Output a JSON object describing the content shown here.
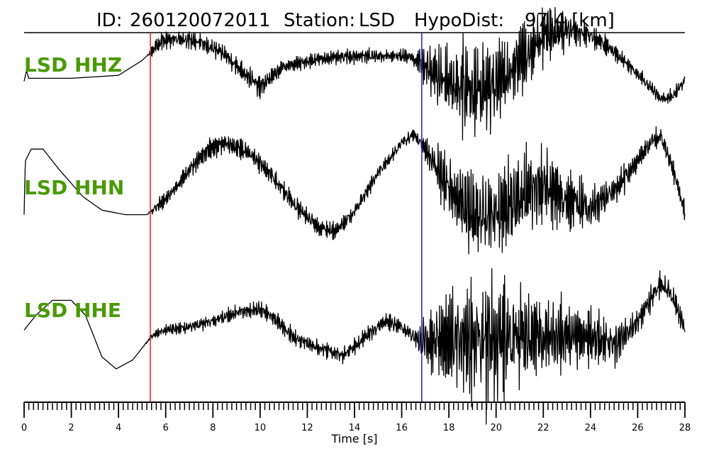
{
  "title": {
    "id_label": "ID:",
    "id_value": "260120072011",
    "station_label": "Station:",
    "station_value": "LSD",
    "dist_label": "HypoDist:",
    "dist_value": "97.4 [km]"
  },
  "chart_data": {
    "type": "line",
    "xlabel": "Time [s]",
    "xlim": [
      0,
      28
    ],
    "x_ticks": [
      0,
      2,
      4,
      6,
      8,
      10,
      12,
      14,
      16,
      18,
      20,
      22,
      24,
      26,
      28
    ],
    "minor_tick_step": 0.2,
    "grid": false,
    "label_color": "#4a9a07",
    "trace_color": "#000000",
    "markers": [
      {
        "name": "P pick",
        "time": 5.35,
        "color": "#e0201b"
      },
      {
        "name": "S pick",
        "time": 16.85,
        "color": "#1f1fd6"
      }
    ],
    "series": [
      {
        "name": "LSD HHZ",
        "noise": [
          [
            0,
            0
          ],
          [
            5.2,
            0
          ],
          [
            5.6,
            0.35
          ],
          [
            7.0,
            0.35
          ],
          [
            10.0,
            0.45
          ],
          [
            11.0,
            0.3
          ],
          [
            16.5,
            0.3
          ],
          [
            17.0,
            1.0
          ],
          [
            19.0,
            2.1
          ],
          [
            20.0,
            1.8
          ],
          [
            21.5,
            1.5
          ],
          [
            22.5,
            1.0
          ],
          [
            24.0,
            0.5
          ],
          [
            25.5,
            0.3
          ],
          [
            28,
            0.3
          ]
        ],
        "trend": [
          [
            0,
            0.2
          ],
          [
            0.1,
            0.55
          ],
          [
            0.2,
            0.3
          ],
          [
            2.0,
            0.3
          ],
          [
            4.0,
            0.4
          ],
          [
            5.0,
            0.9
          ],
          [
            5.4,
            1.2
          ],
          [
            5.8,
            1.55
          ],
          [
            6.5,
            1.65
          ],
          [
            7.5,
            1.5
          ],
          [
            8.5,
            1.1
          ],
          [
            9.5,
            0.35
          ],
          [
            10.0,
            0.0
          ],
          [
            11.0,
            0.7
          ],
          [
            12.5,
            0.95
          ],
          [
            14.0,
            1.05
          ],
          [
            15.5,
            1.05
          ],
          [
            16.3,
            1.05
          ],
          [
            16.9,
            0.75
          ],
          [
            17.5,
            0.4
          ],
          [
            18.5,
            0.0
          ],
          [
            19.3,
            -0.1
          ],
          [
            20.0,
            0.1
          ],
          [
            21.0,
            0.9
          ],
          [
            22.0,
            1.75
          ],
          [
            23.0,
            1.95
          ],
          [
            24.0,
            1.75
          ],
          [
            25.0,
            1.2
          ],
          [
            26.0,
            0.45
          ],
          [
            27.0,
            -0.4
          ],
          [
            27.5,
            -0.3
          ],
          [
            28,
            0.25
          ]
        ]
      },
      {
        "name": "LSD HHN",
        "noise": [
          [
            0,
            0
          ],
          [
            5.2,
            0
          ],
          [
            5.6,
            0.3
          ],
          [
            8.0,
            0.4
          ],
          [
            11.0,
            0.45
          ],
          [
            14.0,
            0.3
          ],
          [
            16.8,
            0.3
          ],
          [
            17.3,
            0.9
          ],
          [
            18.5,
            1.7
          ],
          [
            19.5,
            2.0
          ],
          [
            21.0,
            1.9
          ],
          [
            22.5,
            1.5
          ],
          [
            24.0,
            1.0
          ],
          [
            26.0,
            0.5
          ],
          [
            28,
            0.4
          ]
        ],
        "trend": [
          [
            0,
            -0.3
          ],
          [
            0.05,
            1.5
          ],
          [
            0.3,
            1.9
          ],
          [
            0.8,
            1.9
          ],
          [
            1.5,
            1.2
          ],
          [
            2.5,
            0.3
          ],
          [
            3.3,
            -0.15
          ],
          [
            4.3,
            -0.3
          ],
          [
            5.2,
            -0.3
          ],
          [
            6.0,
            0.2
          ],
          [
            6.8,
            1.0
          ],
          [
            7.8,
            1.9
          ],
          [
            8.5,
            2.1
          ],
          [
            9.5,
            1.8
          ],
          [
            10.5,
            1.0
          ],
          [
            11.5,
            0.0
          ],
          [
            12.5,
            -0.75
          ],
          [
            13.2,
            -0.85
          ],
          [
            14.0,
            -0.2
          ],
          [
            15.0,
            1.1
          ],
          [
            16.0,
            2.1
          ],
          [
            16.5,
            2.4
          ],
          [
            17.0,
            1.9
          ],
          [
            18.0,
            0.6
          ],
          [
            19.0,
            -0.3
          ],
          [
            20.0,
            -0.3
          ],
          [
            21.0,
            0.3
          ],
          [
            22.0,
            0.7
          ],
          [
            23.0,
            0.2
          ],
          [
            24.0,
            -0.1
          ],
          [
            25.0,
            0.5
          ],
          [
            26.0,
            1.5
          ],
          [
            26.6,
            2.2
          ],
          [
            27.0,
            2.3
          ],
          [
            27.5,
            1.2
          ],
          [
            28,
            -0.2
          ]
        ]
      },
      {
        "name": "LSD HHE",
        "noise": [
          [
            0,
            0
          ],
          [
            5.0,
            0
          ],
          [
            5.6,
            0.2
          ],
          [
            9.5,
            0.35
          ],
          [
            12.0,
            0.35
          ],
          [
            16.5,
            0.35
          ],
          [
            17.0,
            1.2
          ],
          [
            19.5,
            3.1
          ],
          [
            20.5,
            2.6
          ],
          [
            22.0,
            1.7
          ],
          [
            24.5,
            1.2
          ],
          [
            26.0,
            0.5
          ],
          [
            27.0,
            0.6
          ],
          [
            28,
            0.45
          ]
        ],
        "trend": [
          [
            0,
            0.3
          ],
          [
            0.5,
            0.8
          ],
          [
            1.2,
            1.3
          ],
          [
            2.0,
            1.3
          ],
          [
            2.6,
            0.8
          ],
          [
            3.3,
            -0.6
          ],
          [
            3.9,
            -1.0
          ],
          [
            4.6,
            -0.7
          ],
          [
            5.4,
            0.1
          ],
          [
            6.0,
            0.3
          ],
          [
            7.0,
            0.4
          ],
          [
            8.0,
            0.6
          ],
          [
            9.0,
            0.9
          ],
          [
            10.0,
            1.0
          ],
          [
            10.6,
            0.7
          ],
          [
            11.5,
            0.0
          ],
          [
            12.5,
            -0.3
          ],
          [
            13.5,
            -0.55
          ],
          [
            14.5,
            0.1
          ],
          [
            15.3,
            0.6
          ],
          [
            16.0,
            0.4
          ],
          [
            16.8,
            -0.1
          ],
          [
            18.0,
            0.0
          ],
          [
            20.0,
            0.0
          ],
          [
            22.0,
            0.1
          ],
          [
            24.0,
            0.1
          ],
          [
            25.0,
            -0.2
          ],
          [
            26.0,
            0.6
          ],
          [
            27.0,
            1.9
          ],
          [
            27.5,
            1.4
          ],
          [
            28,
            0.3
          ]
        ]
      }
    ]
  }
}
